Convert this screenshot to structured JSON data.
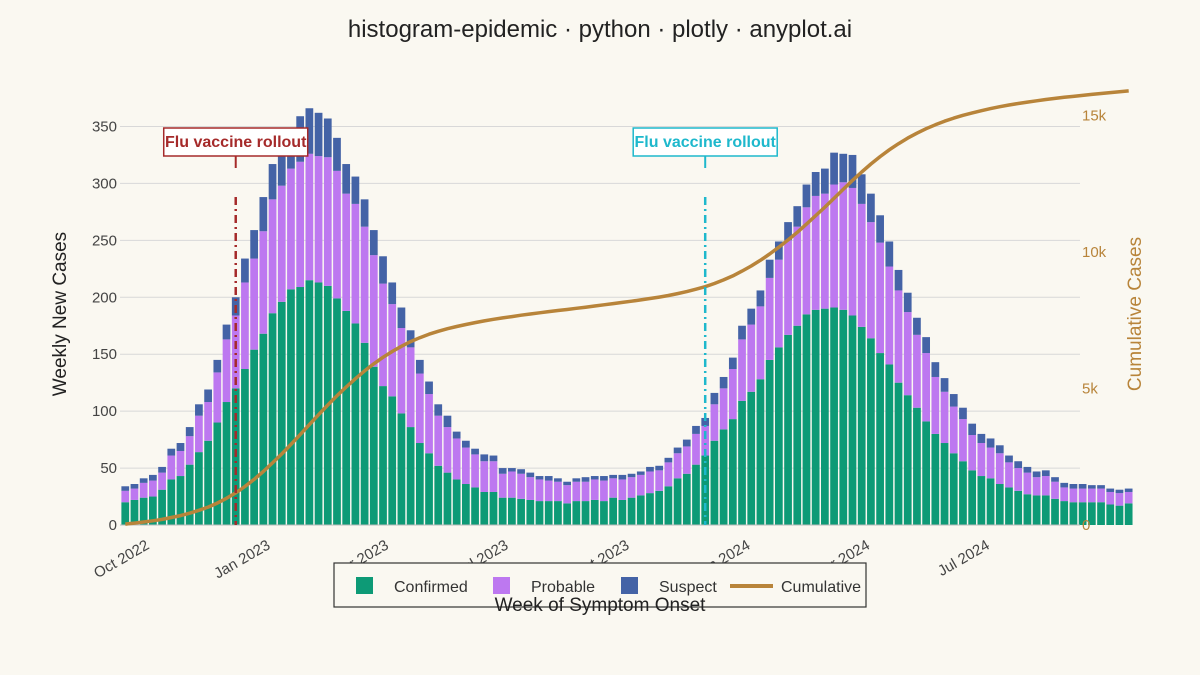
{
  "page": {
    "title": "histogram-epidemic · python · plotly · anyplot.ai"
  },
  "colors": {
    "confirmed": "#0D9A76",
    "probable": "#BD78F0",
    "suspect": "#4463A6",
    "cumulative": "#B8843A",
    "annotation_1": "#A52A2A",
    "annotation_2": "#1EB8CC",
    "grid": "#D8D8D8",
    "background": "#FAF8F1"
  },
  "chart_data": {
    "type": "bar",
    "barmode": "stack",
    "title": "histogram-epidemic · python · plotly · anyplot.ai",
    "xlabel": "Week of Symptom Onset",
    "ylabel": "Weekly New Cases",
    "y2label": "Cumulative Cases",
    "x_start": "2022-09-12",
    "x_step_days": 7,
    "xlim": [
      "2022-09-08",
      "2024-09-07"
    ],
    "x_ticks": [
      "Oct 2022",
      "Jan 2023",
      "Apr 2023",
      "Jul 2023",
      "Oct 2023",
      "Jan 2024",
      "Apr 2024",
      "Jul 2024"
    ],
    "x_tick_dates": [
      "2022-10-01",
      "2023-01-01",
      "2023-04-01",
      "2023-07-01",
      "2023-10-01",
      "2024-01-01",
      "2024-04-01",
      "2024-07-01"
    ],
    "ylim": [
      0,
      375
    ],
    "y_ticks": [
      0,
      50,
      100,
      150,
      200,
      250,
      300,
      350
    ],
    "y2lim": [
      0,
      15640
    ],
    "y2_ticks": [
      0,
      5000,
      10000,
      15000
    ],
    "y2_tick_labels": [
      "0",
      "5k",
      "10k",
      "15k"
    ],
    "grid": true,
    "legend_position": "bottom-center",
    "legend": [
      "Confirmed",
      "Probable",
      "Suspect",
      "Cumulative"
    ],
    "series": [
      {
        "name": "Confirmed",
        "values": [
          20,
          22,
          24,
          25,
          31,
          40,
          43,
          53,
          64,
          74,
          90,
          108,
          120,
          137,
          154,
          168,
          186,
          196,
          207,
          209,
          215,
          213,
          210,
          199,
          188,
          177,
          160,
          139,
          122,
          113,
          98,
          86,
          72,
          63,
          52,
          46,
          40,
          36,
          33,
          29,
          29,
          24,
          24,
          23,
          22,
          21,
          21,
          21,
          19,
          21,
          21,
          22,
          21,
          24,
          22,
          24,
          26,
          28,
          30,
          34,
          41,
          45,
          53,
          61,
          74,
          84,
          93,
          109,
          117,
          128,
          145,
          156,
          167,
          175,
          185,
          189,
          190,
          191,
          189,
          184,
          174,
          164,
          151,
          141,
          125,
          114,
          103,
          91,
          80,
          72,
          63,
          56,
          48,
          43,
          41,
          36,
          33,
          30,
          27,
          26,
          26,
          23,
          21,
          20,
          20,
          20,
          20,
          18,
          17,
          19
        ]
      },
      {
        "name": "Probable",
        "values": [
          10,
          10,
          13,
          14,
          15,
          21,
          22,
          25,
          32,
          34,
          44,
          55,
          64,
          76,
          80,
          90,
          100,
          102,
          106,
          110,
          111,
          111,
          113,
          112,
          103,
          105,
          102,
          98,
          90,
          81,
          75,
          70,
          61,
          52,
          44,
          40,
          36,
          32,
          29,
          27,
          27,
          21,
          23,
          22,
          20,
          19,
          18,
          17,
          16,
          17,
          17,
          18,
          18,
          17,
          18,
          18,
          18,
          19,
          18,
          21,
          22,
          24,
          27,
          26,
          32,
          36,
          44,
          54,
          59,
          64,
          72,
          77,
          83,
          87,
          94,
          100,
          101,
          108,
          112,
          112,
          108,
          102,
          97,
          86,
          81,
          73,
          64,
          60,
          50,
          45,
          41,
          37,
          31,
          29,
          27,
          27,
          22,
          20,
          19,
          16,
          17,
          15,
          12,
          12,
          12,
          12,
          12,
          11,
          11,
          10
        ]
      },
      {
        "name": "Suspect",
        "values": [
          4,
          4,
          4,
          5,
          5,
          6,
          7,
          8,
          10,
          11,
          11,
          13,
          16,
          21,
          25,
          30,
          31,
          32,
          35,
          40,
          40,
          38,
          34,
          29,
          26,
          24,
          24,
          22,
          24,
          19,
          18,
          15,
          12,
          11,
          10,
          10,
          6,
          6,
          5,
          6,
          5,
          5,
          3,
          4,
          4,
          3,
          4,
          3,
          3,
          3,
          4,
          3,
          4,
          3,
          4,
          3,
          3,
          4,
          4,
          4,
          5,
          6,
          7,
          7,
          10,
          10,
          10,
          12,
          14,
          14,
          16,
          16,
          16,
          18,
          20,
          21,
          22,
          28,
          25,
          29,
          26,
          25,
          24,
          22,
          18,
          17,
          15,
          14,
          13,
          12,
          11,
          10,
          10,
          8,
          8,
          7,
          6,
          6,
          5,
          5,
          5,
          4,
          4,
          4,
          4,
          3,
          3,
          3,
          3,
          3
        ]
      },
      {
        "name": "Cumulative",
        "values": [
          34,
          70,
          111,
          155,
          206,
          273,
          345,
          431,
          537,
          656,
          801,
          977,
          1177,
          1411,
          1670,
          1958,
          2275,
          2605,
          2953,
          3312,
          3678,
          4040,
          4397,
          4737,
          5054,
          5360,
          5646,
          5905,
          6141,
          6354,
          6545,
          6716,
          6861,
          6987,
          7093,
          7189,
          7271,
          7345,
          7412,
          7474,
          7535,
          7585,
          7635,
          7684,
          7730,
          7773,
          7816,
          7857,
          7895,
          7936,
          7978,
          8021,
          8064,
          8108,
          8152,
          8197,
          8244,
          8295,
          8347,
          8406,
          8474,
          8549,
          8636,
          8730,
          8846,
          8976,
          9123,
          9298,
          9488,
          9694,
          9927,
          10176,
          10442,
          10722,
          11021,
          11331,
          11644,
          11971,
          12297,
          12622,
          12930,
          13221,
          13493,
          13742,
          13966,
          14170,
          14352,
          14517,
          14660,
          14789,
          14904,
          15007,
          15096,
          15176,
          15252,
          15322,
          15383,
          15439,
          15490,
          15537,
          15585,
          15627,
          15664,
          15700,
          15736,
          15771,
          15806,
          15838,
          15869,
          15901
        ]
      }
    ],
    "annotations": [
      {
        "text": "Flu vaccine rollout",
        "date": "2022-12-05"
      },
      {
        "text": "Flu vaccine rollout",
        "date": "2023-11-27"
      }
    ]
  }
}
